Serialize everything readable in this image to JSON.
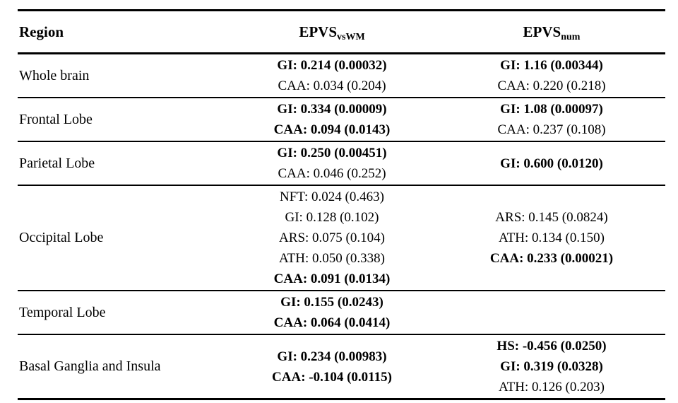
{
  "table": {
    "header": {
      "region": "Region",
      "col2_base": "EPVS",
      "col2_sub": "vsWM",
      "col3_base": "EPVS",
      "col3_sub": "num"
    },
    "rows": [
      {
        "region": "Whole brain",
        "vswm": [
          {
            "text": "GI: 0.214 (0.00032)",
            "bold": true
          },
          {
            "text": "CAA: 0.034 (0.204)",
            "bold": false
          }
        ],
        "num": [
          {
            "text": "GI: 1.16 (0.00344)",
            "bold": true
          },
          {
            "text": "CAA: 0.220 (0.218)",
            "bold": false
          }
        ]
      },
      {
        "region": "Frontal Lobe",
        "vswm": [
          {
            "text": "GI: 0.334 (0.00009)",
            "bold": true
          },
          {
            "text": "CAA: 0.094 (0.0143)",
            "bold": true
          }
        ],
        "num": [
          {
            "text": "GI: 1.08 (0.00097)",
            "bold": true
          },
          {
            "text": "CAA: 0.237 (0.108)",
            "bold": false
          }
        ]
      },
      {
        "region": "Parietal Lobe",
        "vswm": [
          {
            "text": "GI: 0.250 (0.00451)",
            "bold": true
          },
          {
            "text": "CAA: 0.046 (0.252)",
            "bold": false
          }
        ],
        "num": [
          {
            "text": "GI: 0.600 (0.0120)",
            "bold": true
          }
        ]
      },
      {
        "region": "Occipital Lobe",
        "vswm": [
          {
            "text": "NFT: 0.024 (0.463)",
            "bold": false
          },
          {
            "text": "GI: 0.128 (0.102)",
            "bold": false
          },
          {
            "text": "ARS: 0.075 (0.104)",
            "bold": false
          },
          {
            "text": "ATH: 0.050 (0.338)",
            "bold": false
          },
          {
            "text": "CAA: 0.091 (0.0134)",
            "bold": true
          }
        ],
        "num": [
          {
            "text": "ARS: 0.145 (0.0824)",
            "bold": false
          },
          {
            "text": "ATH: 0.134 (0.150)",
            "bold": false
          },
          {
            "text": "CAA: 0.233 (0.00021)",
            "bold": true
          }
        ]
      },
      {
        "region": "Temporal Lobe",
        "vswm": [
          {
            "text": "GI: 0.155 (0.0243)",
            "bold": true
          },
          {
            "text": "CAA: 0.064 (0.0414)",
            "bold": true
          }
        ],
        "num": []
      },
      {
        "region": "Basal Ganglia and Insula",
        "vswm": [
          {
            "text": "GI: 0.234 (0.00983)",
            "bold": true
          },
          {
            "text": "CAA: -0.104 (0.0115)",
            "bold": true
          }
        ],
        "num": [
          {
            "text": "HS: -0.456 (0.0250)",
            "bold": true
          },
          {
            "text": "GI: 0.319 (0.0328)",
            "bold": true
          },
          {
            "text": "ATH: 0.126 (0.203)",
            "bold": false
          }
        ]
      }
    ]
  }
}
